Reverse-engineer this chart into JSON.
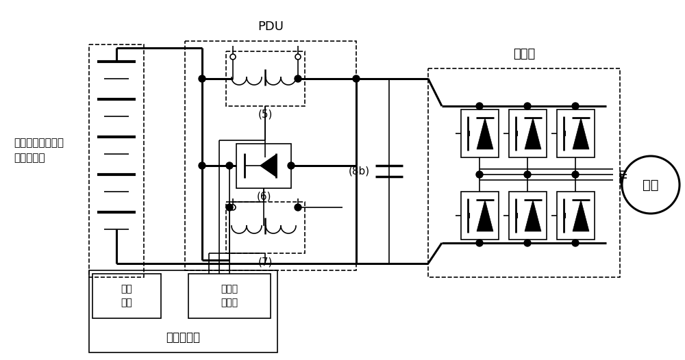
{
  "bg_color": "#ffffff",
  "text_PDU": "PDU",
  "text_inverter": "逆变器",
  "text_motor": "马达",
  "text_battery": "燃料电池（电池或\n超级电容）",
  "text_5": "(5)",
  "text_6": "(6)",
  "text_7": "(7)",
  "text_8b": "(8b)",
  "text_gate": "门驱\n动器",
  "text_relay": "继电器\n驱动器",
  "text_controller": "控制器单元",
  "figsize": [
    10.0,
    5.26
  ],
  "dpi": 100
}
